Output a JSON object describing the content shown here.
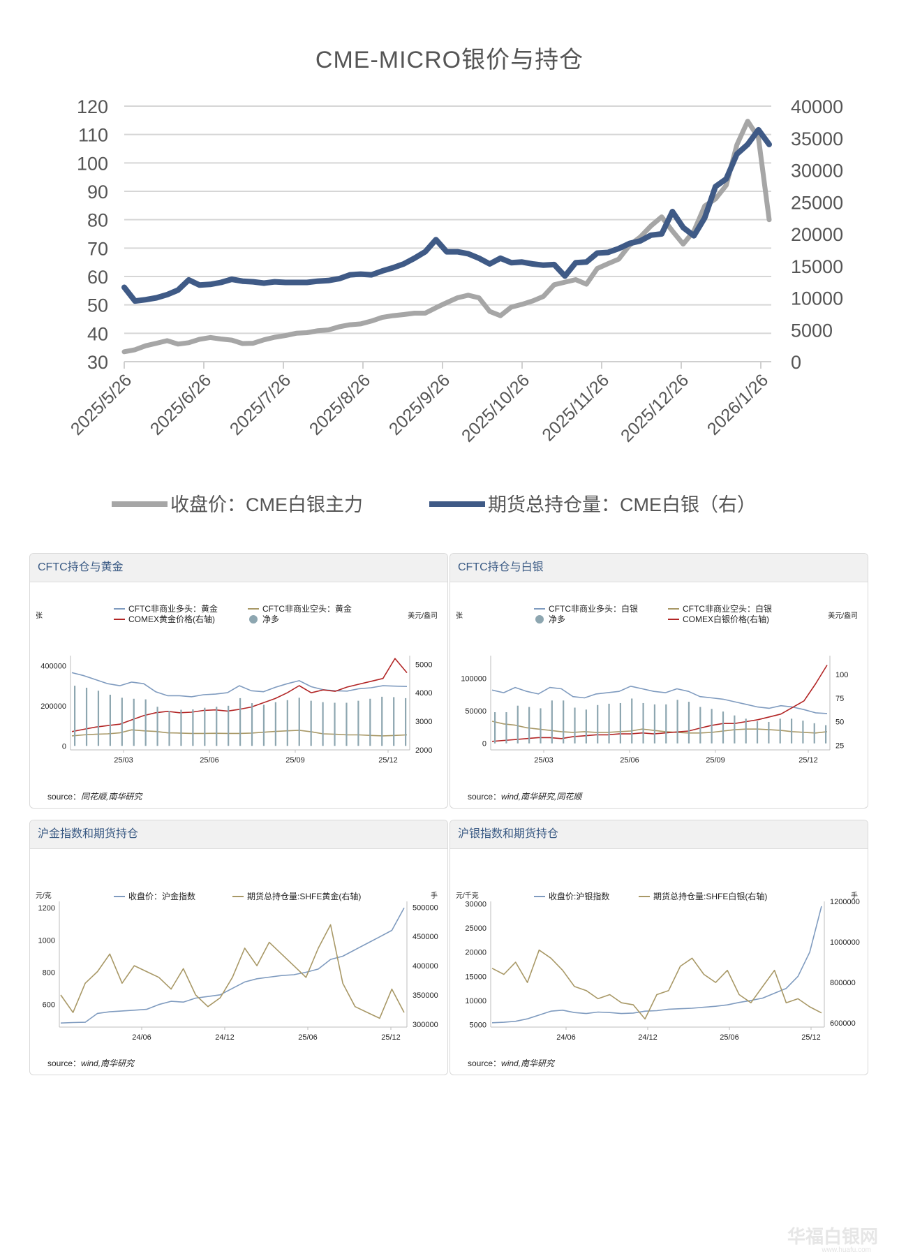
{
  "main": {
    "title": "CME-MICRO银价与持仓",
    "watermark": "华福白银网",
    "watermark_url": "www.huafu.com",
    "chart_data": {
      "type": "line",
      "title": "CME-MICRO银价与持仓",
      "x_tick_labels": [
        "2025/5/26",
        "2025/6/26",
        "2025/7/26",
        "2025/8/26",
        "2025/9/26",
        "2025/10/26",
        "2025/11/26",
        "2025/12/26",
        "2026/1/26"
      ],
      "left_ticks": [
        "120",
        "110",
        "100",
        "90",
        "80",
        "70",
        "60",
        "50",
        "40",
        "30"
      ],
      "right_ticks": [
        "40000",
        "35000",
        "30000",
        "25000",
        "20000",
        "15000",
        "10000",
        "5000",
        "0"
      ],
      "ylim_left": [
        30,
        120
      ],
      "ylim_right": [
        0,
        40000
      ],
      "series": [
        {
          "name": "收盘价：CME白银主力",
          "axis": "left",
          "color": "#a6a6a6",
          "values": [
            33.5,
            34.2,
            35.6,
            36.5,
            37.4,
            36.2,
            36.7,
            37.9,
            38.5,
            38.0,
            37.6,
            36.4,
            36.5,
            37.7,
            38.6,
            39.2,
            40.0,
            40.2,
            40.9,
            41.2,
            42.3,
            43.0,
            43.3,
            44.3,
            45.6,
            46.2,
            46.6,
            47.1,
            47.1,
            49.0,
            50.8,
            52.5,
            53.4,
            52.5,
            47.7,
            46.2,
            49.2,
            50.2,
            51.4,
            53.0,
            57.1,
            58.0,
            58.9,
            57.3,
            62.8,
            64.5,
            66.1,
            71.0,
            73.9,
            77.8,
            81.0,
            76.0,
            71.4,
            76.0,
            84.8,
            87.3,
            92.1,
            106.4,
            114.7,
            108.9,
            80.0
          ]
        },
        {
          "name": "期货总持仓量：CME白银（右）",
          "axis": "right",
          "color": "#3f5a86",
          "values": [
            11640,
            9500,
            9700,
            10000,
            10500,
            11200,
            12800,
            12000,
            12100,
            12400,
            12900,
            12600,
            12500,
            12300,
            12500,
            12400,
            12400,
            12400,
            12600,
            12700,
            13000,
            13600,
            13700,
            13600,
            14200,
            14700,
            15300,
            16200,
            17200,
            19100,
            17200,
            17200,
            16900,
            16200,
            15300,
            16200,
            15500,
            15600,
            15300,
            15100,
            15200,
            13400,
            15500,
            15600,
            17000,
            17100,
            17700,
            18500,
            18900,
            19800,
            20000,
            23500,
            21000,
            19700,
            22500,
            27400,
            28600,
            32500,
            34000,
            36300,
            34000
          ]
        }
      ]
    },
    "legend": [
      "收盘价：CME白银主力",
      "期货总持仓量：CME白银（右）"
    ]
  },
  "panels": [
    {
      "title": "CFTC持仓与黄金",
      "source_label": "source：",
      "source_text": "同花顺,南华研究",
      "unit_left": "张",
      "unit_right": "美元/盎司",
      "legend": [
        "CFTC非商业多头：黄金",
        "CFTC非商业空头：黄金",
        "COMEX黄金价格(右轴)",
        "净多"
      ],
      "chart_data": {
        "type": "line+bar",
        "x_tick_labels": [
          "25/03",
          "25/06",
          "25/09",
          "25/12"
        ],
        "left_ticks": [
          "400000",
          "200000",
          "0"
        ],
        "right_ticks": [
          "5000",
          "4000",
          "3000",
          "2000"
        ],
        "ylim_left": [
          -20000,
          450000
        ],
        "ylim_right": [
          2000,
          5300
        ],
        "series": [
          {
            "name": "CFTC非商业多头：黄金",
            "axis": "left",
            "color": "#7f9bbf",
            "values": [
              365000,
              350000,
              330000,
              310000,
              300000,
              318000,
              310000,
              270000,
              250000,
              250000,
              245000,
              255000,
              258000,
              265000,
              300000,
              275000,
              270000,
              292000,
              310000,
              325000,
              295000,
              280000,
              275000,
              273000,
              285000,
              290000,
              300000,
              298000,
              296000
            ]
          },
          {
            "name": "CFTC非商业空头：黄金",
            "axis": "left",
            "color": "#a89866",
            "values": [
              50000,
              55000,
              58000,
              60000,
              65000,
              80000,
              75000,
              72000,
              65000,
              64000,
              62000,
              62000,
              63000,
              62000,
              62000,
              64000,
              68000,
              72000,
              75000,
              78000,
              70000,
              60000,
              58000,
              55000,
              55000,
              52000,
              50000,
              52000,
              55000
            ]
          },
          {
            "name": "COMEX黄金价格(右轴)",
            "axis": "right",
            "color": "#b22525",
            "values": [
              2640,
              2720,
              2800,
              2850,
              2900,
              3050,
              3200,
              3300,
              3350,
              3300,
              3320,
              3380,
              3400,
              3360,
              3420,
              3500,
              3650,
              3800,
              4000,
              4250,
              4000,
              4100,
              4050,
              4200,
              4300,
              4400,
              4500,
              5200,
              4700
            ]
          },
          {
            "name": "净多",
            "axis": "left",
            "color": "#8da6b0",
            "type": "bar",
            "values": [
              300000,
              290000,
              275000,
              255000,
              240000,
              235000,
              232000,
              195000,
              175000,
              180000,
              182000,
              190000,
              195000,
              200000,
              238000,
              213000,
              205000,
              218000,
              228000,
              240000,
              225000,
              218000,
              215000,
              215000,
              225000,
              235000,
              245000,
              243000,
              238000
            ]
          }
        ]
      }
    },
    {
      "title": "CFTC持仓与白银",
      "source_label": "source：",
      "source_text": "wind,南华研究,同花顺",
      "unit_left": "张",
      "unit_right": "美元/盎司",
      "legend": [
        "CFTC非商业多头：白银",
        "CFTC非商业空头：白银",
        "净多",
        "COMEX白银价格(右轴)"
      ],
      "chart_data": {
        "type": "line+bar",
        "x_tick_labels": [
          "25/03",
          "25/06",
          "25/09",
          "25/12"
        ],
        "left_ticks": [
          "100000",
          "50000",
          "0"
        ],
        "right_ticks": [
          "100",
          "75",
          "50",
          "25"
        ],
        "ylim_left": [
          -10000,
          135000
        ],
        "ylim_right": [
          20,
          120
        ],
        "series": [
          {
            "name": "CFTC非商业多头：白银",
            "axis": "left",
            "color": "#7f9bbf",
            "values": [
              82000,
              78000,
              86000,
              80000,
              76000,
              86000,
              84000,
              72000,
              70000,
              76000,
              78000,
              80000,
              88000,
              84000,
              80000,
              78000,
              84000,
              80000,
              72000,
              70000,
              68000,
              64000,
              60000,
              56000,
              54000,
              58000,
              56000,
              52000,
              47000,
              46000
            ]
          },
          {
            "name": "CFTC非商业空头：白银",
            "axis": "left",
            "color": "#a89866",
            "values": [
              34000,
              30000,
              28000,
              24000,
              22000,
              20000,
              18000,
              17000,
              18000,
              17000,
              17000,
              18000,
              19000,
              22000,
              20000,
              18000,
              17000,
              16000,
              16000,
              17000,
              19000,
              21000,
              22000,
              22000,
              21000,
              20000,
              18000,
              17000,
              16000,
              18000
            ]
          },
          {
            "name": "COMEX白银价格(右轴)",
            "axis": "right",
            "color": "#b22525",
            "values": [
              29,
              30,
              31,
              32,
              33,
              33,
              32,
              34,
              35,
              36,
              36,
              37,
              37,
              38,
              37,
              38,
              39,
              40,
              43,
              46,
              48,
              48,
              50,
              52,
              55,
              58,
              65,
              72,
              90,
              110
            ]
          },
          {
            "name": "净多",
            "axis": "left",
            "color": "#8da6b0",
            "type": "bar",
            "values": [
              48000,
              48000,
              58000,
              56000,
              54000,
              66000,
              66000,
              55000,
              52000,
              59000,
              61000,
              62000,
              69000,
              62000,
              60000,
              60000,
              67000,
              64000,
              56000,
              53000,
              49000,
              43000,
              38000,
              34000,
              33000,
              38000,
              38000,
              35000,
              31000,
              28000
            ]
          }
        ]
      }
    },
    {
      "title": "沪金指数和期货持仓",
      "source_label": "source：",
      "source_text": "wind,南华研究",
      "unit_left": "元/克",
      "unit_right": "手",
      "legend": [
        "收盘价：沪金指数",
        "期货总持仓量:SHFE黄金(右轴)"
      ],
      "chart_data": {
        "type": "line",
        "x_tick_labels": [
          "24/06",
          "24/12",
          "25/06",
          "25/12"
        ],
        "left_ticks": [
          "1200",
          "1000",
          "800",
          "600"
        ],
        "right_ticks": [
          "500000",
          "450000",
          "400000",
          "350000",
          "300000"
        ],
        "ylim_left": [
          460,
          1240
        ],
        "ylim_right": [
          295000,
          510000
        ],
        "series": [
          {
            "name": "收盘价：沪金指数",
            "axis": "left",
            "color": "#7f9bbf",
            "values": [
              485,
              488,
              490,
              545,
              555,
              560,
              565,
              570,
              600,
              620,
              615,
              640,
              650,
              660,
              700,
              740,
              760,
              770,
              780,
              785,
              800,
              820,
              880,
              900,
              940,
              980,
              1020,
              1060,
              1200
            ]
          },
          {
            "name": "期货总持仓量:SHFE黄金(右轴)",
            "axis": "right",
            "color": "#a89866",
            "values": [
              350000,
              320000,
              370000,
              390000,
              420000,
              370000,
              400000,
              390000,
              380000,
              360000,
              395000,
              350000,
              330000,
              345000,
              380000,
              430000,
              400000,
              440000,
              420000,
              400000,
              380000,
              430000,
              470000,
              370000,
              330000,
              320000,
              310000,
              360000,
              320000
            ]
          }
        ]
      }
    },
    {
      "title": "沪银指数和期货持仓",
      "source_label": "source：",
      "source_text": "wind,南华研究",
      "unit_left": "元/千克",
      "unit_right": "手",
      "legend": [
        "收盘价:沪银指数",
        "期货总持仓量:SHFE白银(右轴)"
      ],
      "chart_data": {
        "type": "line",
        "x_tick_labels": [
          "24/06",
          "24/12",
          "25/06",
          "25/12"
        ],
        "left_ticks": [
          "30000",
          "25000",
          "20000",
          "15000",
          "10000",
          "5000"
        ],
        "right_ticks": [
          "1200000",
          "1000000",
          "800000",
          "600000"
        ],
        "ylim_left": [
          4500,
          30500
        ],
        "ylim_right": [
          580000,
          1200000
        ],
        "series": [
          {
            "name": "收盘价:沪银指数",
            "axis": "left",
            "color": "#7f9bbf",
            "values": [
              5400,
              5500,
              5700,
              6200,
              7000,
              7800,
              8000,
              7500,
              7300,
              7600,
              7500,
              7300,
              7400,
              7800,
              7900,
              8200,
              8300,
              8400,
              8600,
              8800,
              9100,
              9600,
              10000,
              10500,
              11500,
              12500,
              15000,
              20000,
              29500
            ]
          },
          {
            "name": "期货总持仓量:SHFE白银(右轴)",
            "axis": "right",
            "color": "#a89866",
            "values": [
              870000,
              840000,
              900000,
              800000,
              960000,
              920000,
              860000,
              780000,
              760000,
              720000,
              740000,
              700000,
              690000,
              620000,
              740000,
              760000,
              880000,
              920000,
              840000,
              800000,
              860000,
              740000,
              700000,
              780000,
              860000,
              700000,
              720000,
              680000,
              650000
            ]
          }
        ]
      }
    }
  ]
}
